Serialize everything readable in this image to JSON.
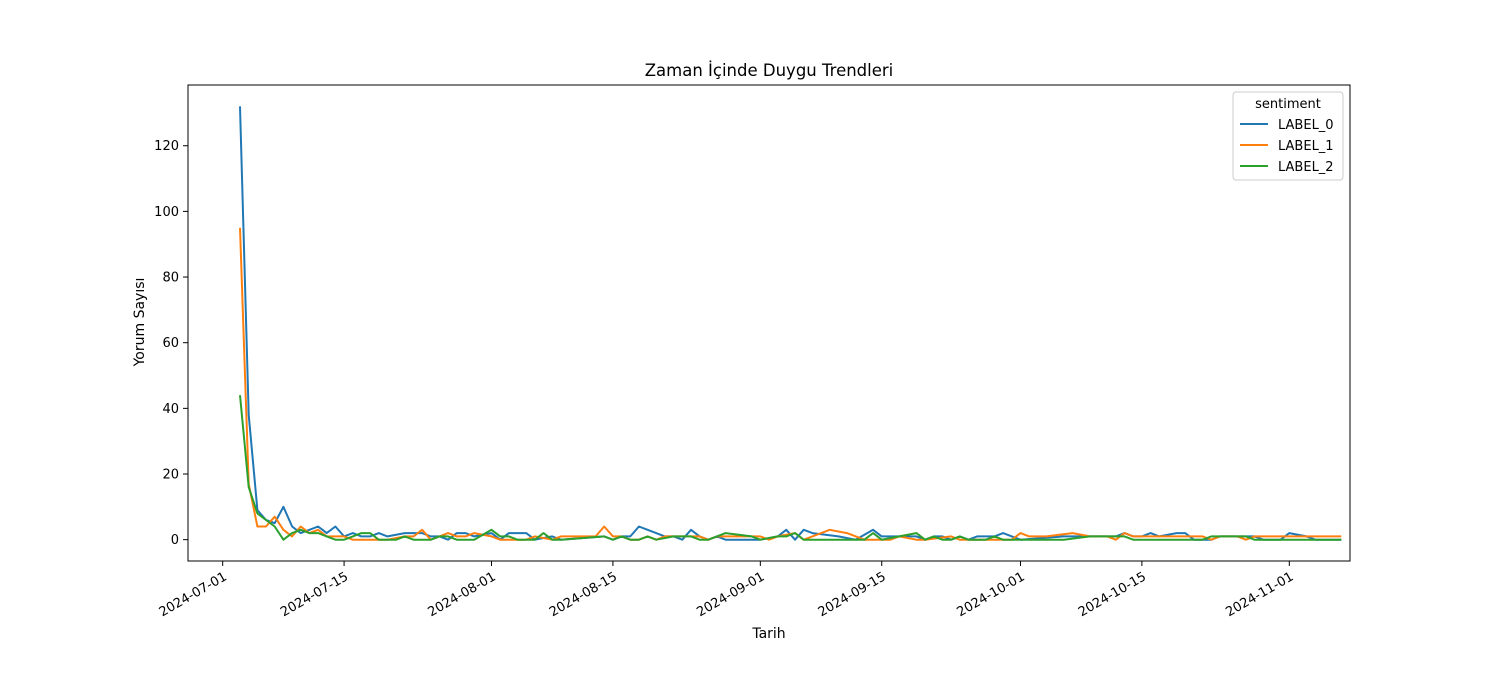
{
  "chart_data": {
    "type": "line",
    "title": "Zaman İçinde Duygu Trendleri",
    "xlabel": "Tarih",
    "ylabel": "Yorum Sayısı",
    "xlim": [
      "2024-06-27",
      "2024-11-08"
    ],
    "ylim": [
      -6.5,
      138.5
    ],
    "x_ticks": [
      "2024-07-01",
      "2024-07-15",
      "2024-08-01",
      "2024-08-15",
      "2024-09-01",
      "2024-09-15",
      "2024-10-01",
      "2024-10-15",
      "2024-11-01"
    ],
    "y_ticks": [
      0,
      20,
      40,
      60,
      80,
      100,
      120
    ],
    "grid": false,
    "legend": {
      "title": "sentiment",
      "position": "top-right"
    },
    "series": [
      {
        "name": "LABEL_0",
        "color": "#1f77b4",
        "points": [
          [
            "2024-07-03",
            132
          ],
          [
            "2024-07-04",
            38
          ],
          [
            "2024-07-05",
            9
          ],
          [
            "2024-07-06",
            6
          ],
          [
            "2024-07-07",
            5
          ],
          [
            "2024-07-08",
            10
          ],
          [
            "2024-07-09",
            4
          ],
          [
            "2024-07-10",
            2
          ],
          [
            "2024-07-11",
            3
          ],
          [
            "2024-07-12",
            4
          ],
          [
            "2024-07-13",
            2
          ],
          [
            "2024-07-14",
            4
          ],
          [
            "2024-07-15",
            1
          ],
          [
            "2024-07-16",
            2
          ],
          [
            "2024-07-17",
            1
          ],
          [
            "2024-07-18",
            1
          ],
          [
            "2024-07-19",
            2
          ],
          [
            "2024-07-20",
            1
          ],
          [
            "2024-07-22",
            2
          ],
          [
            "2024-07-24",
            2
          ],
          [
            "2024-07-25",
            1
          ],
          [
            "2024-07-26",
            1
          ],
          [
            "2024-07-27",
            0
          ],
          [
            "2024-07-28",
            2
          ],
          [
            "2024-07-29",
            2
          ],
          [
            "2024-07-30",
            1
          ],
          [
            "2024-08-01",
            2
          ],
          [
            "2024-08-02",
            0
          ],
          [
            "2024-08-03",
            2
          ],
          [
            "2024-08-05",
            2
          ],
          [
            "2024-08-06",
            0
          ],
          [
            "2024-08-08",
            1
          ],
          [
            "2024-08-09",
            0
          ],
          [
            "2024-08-14",
            1
          ],
          [
            "2024-08-15",
            0
          ],
          [
            "2024-08-16",
            1
          ],
          [
            "2024-08-17",
            1
          ],
          [
            "2024-08-18",
            4
          ],
          [
            "2024-08-19",
            3
          ],
          [
            "2024-08-21",
            1
          ],
          [
            "2024-08-22",
            1
          ],
          [
            "2024-08-23",
            0
          ],
          [
            "2024-08-24",
            3
          ],
          [
            "2024-08-25",
            1
          ],
          [
            "2024-08-26",
            0
          ],
          [
            "2024-08-27",
            1
          ],
          [
            "2024-08-28",
            0
          ],
          [
            "2024-08-29",
            0
          ],
          [
            "2024-08-31",
            0
          ],
          [
            "2024-09-01",
            0
          ],
          [
            "2024-09-03",
            1
          ],
          [
            "2024-09-04",
            3
          ],
          [
            "2024-09-05",
            0
          ],
          [
            "2024-09-06",
            3
          ],
          [
            "2024-09-07",
            2
          ],
          [
            "2024-09-10",
            1
          ],
          [
            "2024-09-12",
            0
          ],
          [
            "2024-09-14",
            3
          ],
          [
            "2024-09-15",
            1
          ],
          [
            "2024-09-16",
            1
          ],
          [
            "2024-09-19",
            1
          ],
          [
            "2024-09-20",
            0
          ],
          [
            "2024-09-21",
            1
          ],
          [
            "2024-09-22",
            1
          ],
          [
            "2024-09-23",
            0
          ],
          [
            "2024-09-24",
            1
          ],
          [
            "2024-09-25",
            0
          ],
          [
            "2024-09-26",
            1
          ],
          [
            "2024-09-28",
            1
          ],
          [
            "2024-09-29",
            2
          ],
          [
            "2024-09-30",
            1
          ],
          [
            "2024-10-01",
            0
          ],
          [
            "2024-10-06",
            1
          ],
          [
            "2024-10-08",
            1
          ],
          [
            "2024-10-12",
            1
          ],
          [
            "2024-10-13",
            2
          ],
          [
            "2024-10-14",
            1
          ],
          [
            "2024-10-15",
            1
          ],
          [
            "2024-10-16",
            2
          ],
          [
            "2024-10-17",
            1
          ],
          [
            "2024-10-19",
            2
          ],
          [
            "2024-10-20",
            2
          ],
          [
            "2024-10-21",
            0
          ],
          [
            "2024-10-22",
            0
          ],
          [
            "2024-10-23",
            0
          ],
          [
            "2024-10-24",
            1
          ],
          [
            "2024-10-28",
            1
          ],
          [
            "2024-10-29",
            0
          ],
          [
            "2024-10-31",
            0
          ],
          [
            "2024-11-01",
            2
          ],
          [
            "2024-11-03",
            1
          ],
          [
            "2024-11-04",
            0
          ],
          [
            "2024-11-07",
            0
          ]
        ]
      },
      {
        "name": "LABEL_1",
        "color": "#ff7f0e",
        "points": [
          [
            "2024-07-03",
            95
          ],
          [
            "2024-07-04",
            17
          ],
          [
            "2024-07-05",
            4
          ],
          [
            "2024-07-06",
            4
          ],
          [
            "2024-07-07",
            7
          ],
          [
            "2024-07-08",
            3
          ],
          [
            "2024-07-09",
            1
          ],
          [
            "2024-07-10",
            4
          ],
          [
            "2024-07-11",
            2
          ],
          [
            "2024-07-12",
            3
          ],
          [
            "2024-07-13",
            1
          ],
          [
            "2024-07-14",
            1
          ],
          [
            "2024-07-15",
            1
          ],
          [
            "2024-07-16",
            0
          ],
          [
            "2024-07-17",
            0
          ],
          [
            "2024-07-18",
            0
          ],
          [
            "2024-07-19",
            0
          ],
          [
            "2024-07-20",
            0
          ],
          [
            "2024-07-22",
            1
          ],
          [
            "2024-07-23",
            1
          ],
          [
            "2024-07-24",
            3
          ],
          [
            "2024-07-25",
            0
          ],
          [
            "2024-07-26",
            1
          ],
          [
            "2024-07-27",
            2
          ],
          [
            "2024-07-28",
            1
          ],
          [
            "2024-07-29",
            1
          ],
          [
            "2024-07-30",
            2
          ],
          [
            "2024-08-01",
            1
          ],
          [
            "2024-08-02",
            0
          ],
          [
            "2024-08-03",
            0
          ],
          [
            "2024-08-04",
            0
          ],
          [
            "2024-08-05",
            0
          ],
          [
            "2024-08-06",
            1
          ],
          [
            "2024-08-08",
            0
          ],
          [
            "2024-08-09",
            1
          ],
          [
            "2024-08-13",
            1
          ],
          [
            "2024-08-14",
            4
          ],
          [
            "2024-08-15",
            1
          ],
          [
            "2024-08-16",
            1
          ],
          [
            "2024-08-17",
            0
          ],
          [
            "2024-08-18",
            0
          ],
          [
            "2024-08-19",
            1
          ],
          [
            "2024-08-20",
            0
          ],
          [
            "2024-08-21",
            1
          ],
          [
            "2024-08-23",
            1
          ],
          [
            "2024-08-24",
            1
          ],
          [
            "2024-08-25",
            1
          ],
          [
            "2024-08-26",
            0
          ],
          [
            "2024-08-27",
            1
          ],
          [
            "2024-08-28",
            1
          ],
          [
            "2024-08-29",
            1
          ],
          [
            "2024-09-01",
            1
          ],
          [
            "2024-09-02",
            0
          ],
          [
            "2024-09-03",
            1
          ],
          [
            "2024-09-05",
            2
          ],
          [
            "2024-09-06",
            0
          ],
          [
            "2024-09-07",
            1
          ],
          [
            "2024-09-09",
            3
          ],
          [
            "2024-09-11",
            2
          ],
          [
            "2024-09-13",
            0
          ],
          [
            "2024-09-15",
            0
          ],
          [
            "2024-09-16",
            0
          ],
          [
            "2024-09-17",
            1
          ],
          [
            "2024-09-19",
            0
          ],
          [
            "2024-09-20",
            0
          ],
          [
            "2024-09-23",
            1
          ],
          [
            "2024-09-24",
            0
          ],
          [
            "2024-09-30",
            0
          ],
          [
            "2024-10-01",
            2
          ],
          [
            "2024-10-02",
            1
          ],
          [
            "2024-10-04",
            1
          ],
          [
            "2024-10-07",
            2
          ],
          [
            "2024-10-09",
            1
          ],
          [
            "2024-10-11",
            1
          ],
          [
            "2024-10-12",
            0
          ],
          [
            "2024-10-13",
            2
          ],
          [
            "2024-10-14",
            1
          ],
          [
            "2024-10-19",
            1
          ],
          [
            "2024-10-20",
            1
          ],
          [
            "2024-10-21",
            1
          ],
          [
            "2024-10-22",
            1
          ],
          [
            "2024-10-23",
            0
          ],
          [
            "2024-10-24",
            1
          ],
          [
            "2024-10-26",
            1
          ],
          [
            "2024-10-27",
            0
          ],
          [
            "2024-10-28",
            1
          ],
          [
            "2024-10-29",
            1
          ],
          [
            "2024-11-07",
            1
          ]
        ]
      },
      {
        "name": "LABEL_2",
        "color": "#2ca02c",
        "points": [
          [
            "2024-07-03",
            44
          ],
          [
            "2024-07-04",
            16
          ],
          [
            "2024-07-05",
            8
          ],
          [
            "2024-07-06",
            6
          ],
          [
            "2024-07-07",
            4
          ],
          [
            "2024-07-08",
            0
          ],
          [
            "2024-07-09",
            2
          ],
          [
            "2024-07-10",
            3
          ],
          [
            "2024-07-11",
            2
          ],
          [
            "2024-07-12",
            2
          ],
          [
            "2024-07-13",
            1
          ],
          [
            "2024-07-14",
            0
          ],
          [
            "2024-07-15",
            0
          ],
          [
            "2024-07-16",
            1
          ],
          [
            "2024-07-17",
            2
          ],
          [
            "2024-07-18",
            2
          ],
          [
            "2024-07-19",
            0
          ],
          [
            "2024-07-20",
            0
          ],
          [
            "2024-07-21",
            0
          ],
          [
            "2024-07-22",
            1
          ],
          [
            "2024-07-23",
            0
          ],
          [
            "2024-07-25",
            0
          ],
          [
            "2024-07-26",
            1
          ],
          [
            "2024-07-27",
            1
          ],
          [
            "2024-07-28",
            0
          ],
          [
            "2024-07-29",
            0
          ],
          [
            "2024-07-30",
            0
          ],
          [
            "2024-08-01",
            3
          ],
          [
            "2024-08-02",
            1
          ],
          [
            "2024-08-03",
            1
          ],
          [
            "2024-08-04",
            0
          ],
          [
            "2024-08-05",
            0
          ],
          [
            "2024-08-06",
            0
          ],
          [
            "2024-08-07",
            2
          ],
          [
            "2024-08-08",
            0
          ],
          [
            "2024-08-09",
            0
          ],
          [
            "2024-08-14",
            1
          ],
          [
            "2024-08-15",
            0
          ],
          [
            "2024-08-16",
            1
          ],
          [
            "2024-08-17",
            0
          ],
          [
            "2024-08-18",
            0
          ],
          [
            "2024-08-19",
            1
          ],
          [
            "2024-08-20",
            0
          ],
          [
            "2024-08-22",
            1
          ],
          [
            "2024-08-23",
            1
          ],
          [
            "2024-08-24",
            1
          ],
          [
            "2024-08-25",
            0
          ],
          [
            "2024-08-26",
            0
          ],
          [
            "2024-08-28",
            2
          ],
          [
            "2024-08-31",
            1
          ],
          [
            "2024-09-01",
            0
          ],
          [
            "2024-09-03",
            1
          ],
          [
            "2024-09-04",
            1
          ],
          [
            "2024-09-05",
            2
          ],
          [
            "2024-09-06",
            0
          ],
          [
            "2024-09-10",
            0
          ],
          [
            "2024-09-13",
            0
          ],
          [
            "2024-09-14",
            2
          ],
          [
            "2024-09-15",
            0
          ],
          [
            "2024-09-19",
            2
          ],
          [
            "2024-09-20",
            0
          ],
          [
            "2024-09-21",
            1
          ],
          [
            "2024-09-22",
            0
          ],
          [
            "2024-09-23",
            0
          ],
          [
            "2024-09-24",
            1
          ],
          [
            "2024-09-25",
            0
          ],
          [
            "2024-09-27",
            0
          ],
          [
            "2024-09-28",
            1
          ],
          [
            "2024-09-29",
            0
          ],
          [
            "2024-09-30",
            0
          ],
          [
            "2024-10-06",
            0
          ],
          [
            "2024-10-09",
            1
          ],
          [
            "2024-10-12",
            1
          ],
          [
            "2024-10-13",
            1
          ],
          [
            "2024-10-14",
            0
          ],
          [
            "2024-10-15",
            0
          ],
          [
            "2024-10-16",
            0
          ],
          [
            "2024-10-22",
            0
          ],
          [
            "2024-10-23",
            1
          ],
          [
            "2024-10-24",
            1
          ],
          [
            "2024-10-25",
            1
          ],
          [
            "2024-10-26",
            1
          ],
          [
            "2024-10-27",
            1
          ],
          [
            "2024-10-28",
            0
          ],
          [
            "2024-10-29",
            0
          ],
          [
            "2024-11-07",
            0
          ]
        ]
      }
    ]
  }
}
